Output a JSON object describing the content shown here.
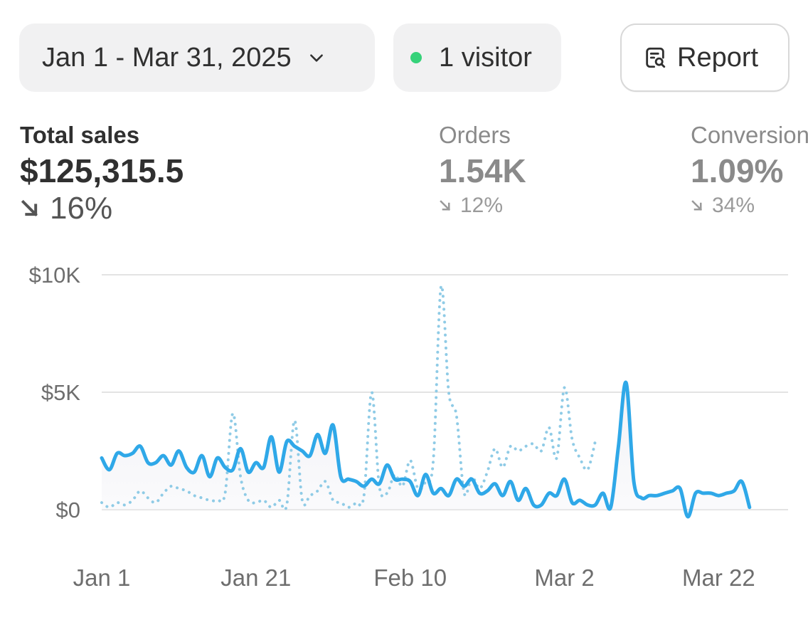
{
  "controls": {
    "date_range": "Jan 1 - Mar 31, 2025",
    "visitor_label": "1 visitor",
    "report_label": "Report"
  },
  "metrics": [
    {
      "label": "Total sales",
      "value": "$125,315.5",
      "delta": "16%",
      "direction": "down",
      "active": true
    },
    {
      "label": "Orders",
      "value": "1.54K",
      "delta": "12%",
      "direction": "down",
      "active": false
    },
    {
      "label": "Conversion",
      "value": "1.09%",
      "delta": "34%",
      "direction": "down",
      "active": false
    }
  ],
  "colors": {
    "current_series": "#2fa8e8",
    "comparison_series": "#8fcbe6",
    "live_dot": "#36d27a",
    "gridline": "#e3e3e3"
  },
  "chart_data": {
    "type": "line",
    "ylim": [
      0,
      10000
    ],
    "y_ticks": [
      {
        "value": 0,
        "label": "$0"
      },
      {
        "value": 5000,
        "label": "$5K"
      },
      {
        "value": 10000,
        "label": "$10K"
      }
    ],
    "x_ticks": [
      {
        "day": 1,
        "label": "Jan 1"
      },
      {
        "day": 21,
        "label": "Jan 21"
      },
      {
        "day": 41,
        "label": "Feb 10"
      },
      {
        "day": 61,
        "label": "Mar 2"
      },
      {
        "day": 81,
        "label": "Mar 22"
      }
    ],
    "grid": true,
    "series": [
      {
        "style": "solid",
        "x": [
          1,
          2,
          3,
          4,
          5,
          6,
          7,
          8,
          9,
          10,
          11,
          12,
          13,
          14,
          15,
          16,
          17,
          18,
          19,
          20,
          21,
          22,
          23,
          24,
          25,
          26,
          27,
          28,
          29,
          30,
          31,
          32,
          33,
          34,
          35,
          36,
          37,
          38,
          39,
          40,
          41,
          42,
          43,
          44,
          45,
          46,
          47,
          48,
          49,
          50,
          51,
          52,
          53,
          54,
          55,
          56,
          57,
          58,
          59,
          60,
          61,
          62,
          63,
          64,
          65,
          66,
          67,
          68,
          69,
          70,
          71,
          72,
          73,
          74,
          75,
          76,
          77,
          78,
          79,
          80,
          81,
          82,
          83,
          84,
          85,
          86,
          87,
          88,
          89,
          90
        ],
        "values": [
          2200,
          1700,
          2400,
          2300,
          2400,
          2700,
          2000,
          2000,
          2300,
          1900,
          2500,
          1800,
          1600,
          2300,
          1400,
          2200,
          1800,
          1700,
          2600,
          1600,
          2000,
          1800,
          3100,
          1600,
          2900,
          2700,
          2500,
          2300,
          3200,
          2400,
          3600,
          1400,
          1300,
          1200,
          1000,
          1300,
          1100,
          1900,
          1300,
          1300,
          1200,
          600,
          1500,
          700,
          900,
          600,
          1300,
          1000,
          1300,
          700,
          800,
          1100,
          600,
          1200,
          400,
          900,
          200,
          200,
          700,
          600,
          1300,
          300,
          400,
          200,
          200,
          700,
          100,
          2700,
          5400,
          1200,
          500,
          600,
          600,
          700,
          800,
          900,
          -300,
          700,
          700,
          700,
          600,
          700,
          800,
          1200,
          100,
          null,
          null,
          null,
          null,
          null
        ]
      },
      {
        "style": "dotted",
        "x": [
          1,
          2,
          3,
          4,
          5,
          6,
          7,
          8,
          9,
          10,
          11,
          12,
          13,
          14,
          15,
          16,
          17,
          18,
          19,
          20,
          21,
          22,
          23,
          24,
          25,
          26,
          27,
          28,
          29,
          30,
          31,
          32,
          33,
          34,
          35,
          36,
          37,
          38,
          39,
          40,
          41,
          42,
          43,
          44,
          45,
          46,
          47,
          48,
          49,
          50,
          51,
          52,
          53,
          54,
          55,
          56,
          57,
          58,
          59,
          60,
          61,
          62,
          63,
          64,
          65,
          66,
          67,
          68,
          69,
          70,
          71,
          72,
          73,
          74,
          75,
          76,
          77,
          78,
          79,
          80,
          81,
          82,
          83,
          84,
          85,
          86,
          87,
          88,
          89,
          90
        ],
        "values": [
          300,
          100,
          300,
          200,
          400,
          800,
          500,
          300,
          700,
          1000,
          900,
          800,
          600,
          500,
          400,
          400,
          700,
          4100,
          1400,
          400,
          300,
          400,
          100,
          400,
          200,
          3800,
          400,
          600,
          800,
          1200,
          400,
          300,
          100,
          300,
          600,
          5000,
          1000,
          700,
          1500,
          1000,
          2100,
          900,
          1200,
          2100,
          9500,
          5000,
          4000,
          700,
          1400,
          900,
          1600,
          2600,
          1800,
          2700,
          2500,
          2700,
          2800,
          2500,
          3500,
          2200,
          5200,
          3000,
          2200,
          1700,
          2900,
          null,
          null,
          null,
          null,
          null,
          null,
          null,
          null,
          null,
          null,
          null,
          null,
          null,
          null,
          null,
          null,
          null,
          null,
          null,
          null,
          null,
          null,
          null,
          null,
          null
        ]
      }
    ]
  }
}
